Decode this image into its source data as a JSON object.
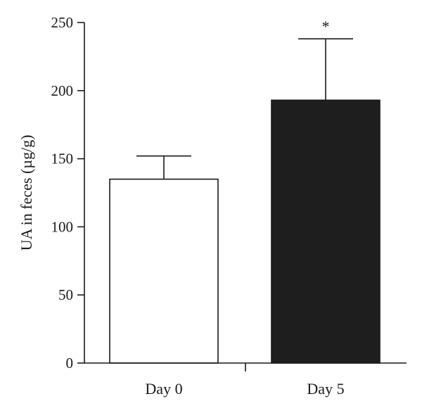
{
  "chart_data": {
    "type": "bar",
    "categories": [
      "Day 0",
      "Day 5"
    ],
    "values": [
      135,
      193
    ],
    "error_upper": [
      152,
      238
    ],
    "bar_colors": [
      "#ffffff",
      "#1e1e1e"
    ],
    "bar_outline": "#1a1a1a",
    "significance": [
      "",
      "*"
    ],
    "title": "",
    "xlabel": "",
    "ylabel": "UA in feces (µg/g)",
    "ylim": [
      0,
      250
    ],
    "yticks": [
      "0",
      "50",
      "100",
      "150",
      "200",
      "250"
    ],
    "grid": false,
    "legend": "none"
  }
}
